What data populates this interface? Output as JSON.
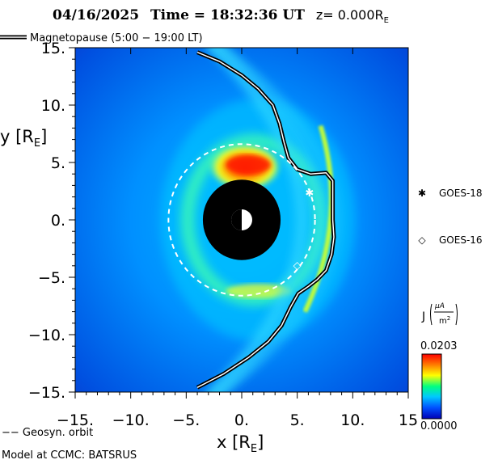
{
  "chart_data": {
    "type": "heatmap",
    "title": {
      "date": "04/16/2025",
      "time_label": "Time = 18:32:36 UT",
      "z_label": "z= 0.000R",
      "z_unit_sub": "E"
    },
    "xlabel": "x [R",
    "xlabel_sub": "E",
    "ylabel": "y [R",
    "ylabel_sub": "E",
    "xlim": [
      -15,
      15
    ],
    "ylim": [
      -15,
      15
    ],
    "x_ticks": [
      -15,
      -10,
      -5,
      0,
      5,
      10,
      15
    ],
    "x_tick_labels": [
      "−15.",
      "−10.",
      "−5.",
      "0.",
      "5.",
      "10.",
      "15"
    ],
    "y_ticks": [
      15,
      10,
      5,
      0,
      -5,
      -10,
      -15
    ],
    "y_tick_labels": [
      "15.",
      "10.",
      "5.",
      "0.",
      "−5.",
      "−10.",
      "−15."
    ],
    "legend": {
      "magnetopause_label": "Magnetopause (5:00 − 19:00 LT)",
      "geosync_label": "−− Geosyn. orbit"
    },
    "satellites": [
      {
        "name": "GOES-18",
        "symbol": "✱",
        "x": 6.1,
        "y": 2.4
      },
      {
        "name": "GOES-16",
        "symbol": "◇",
        "x": 5.0,
        "y": -3.9
      }
    ],
    "colorbar": {
      "label": "J",
      "unit_num": "μA",
      "unit_den": "m",
      "unit_den_sup": "2",
      "max_label": "0.0203",
      "min_label": "0.0000",
      "vmin": 0.0,
      "vmax": 0.0203,
      "colors": [
        "#0000b4",
        "#0050ff",
        "#00c8ff",
        "#00ff80",
        "#ffff00",
        "#ff7800",
        "#ff0000"
      ]
    },
    "geosync_radius": 6.6,
    "earth_radius": 3.5,
    "magnetopause": [
      [
        -4,
        14.6
      ],
      [
        -2,
        13.8
      ],
      [
        0,
        12.6
      ],
      [
        1.5,
        11.4
      ],
      [
        2.8,
        10.0
      ],
      [
        3.4,
        8.4
      ],
      [
        3.8,
        6.8
      ],
      [
        4.2,
        5.4
      ],
      [
        5.0,
        4.4
      ],
      [
        6.2,
        4.0
      ],
      [
        7.6,
        4.1
      ],
      [
        8.2,
        3.4
      ],
      [
        8.2,
        0
      ],
      [
        8.3,
        -1.5
      ],
      [
        8.1,
        -3.0
      ],
      [
        7.6,
        -4.4
      ],
      [
        6.8,
        -5.2
      ],
      [
        6.0,
        -5.8
      ],
      [
        5.1,
        -6.4
      ],
      [
        4.4,
        -7.6
      ],
      [
        3.6,
        -9.2
      ],
      [
        2.4,
        -10.6
      ],
      [
        0.6,
        -12.0
      ],
      [
        -1.6,
        -13.4
      ],
      [
        -4,
        -14.6
      ]
    ],
    "credit": "Model at CCMC: BATSRUS"
  }
}
